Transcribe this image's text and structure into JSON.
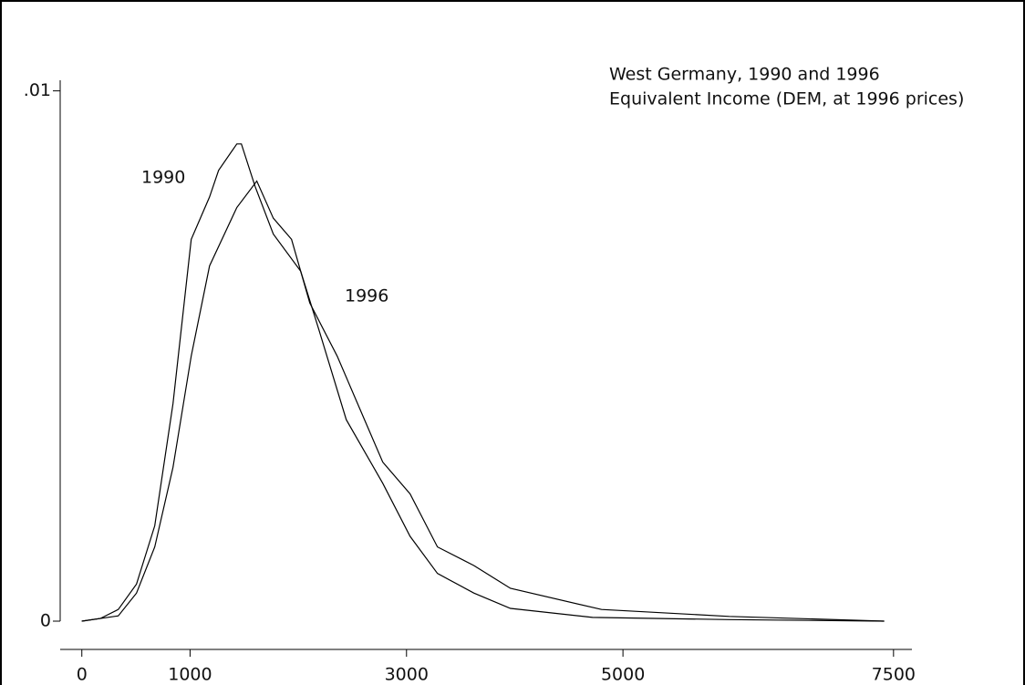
{
  "chart_data": {
    "type": "line",
    "title": "West Germany, 1990 and 1996",
    "subtitle": "Equivalent Income (DEM, at 1996 prices)",
    "series": [
      {
        "name": "1990",
        "color": "#000000",
        "x": [
          0,
          170,
          337,
          505,
          674,
          842,
          1011,
          1180,
          1264,
          1432,
          1474,
          1601,
          1769,
          2022,
          2190,
          2443,
          2780,
          3033,
          3286,
          3622,
          3960,
          4718,
          5981,
          7414
        ],
        "values": [
          0,
          5e-05,
          0.00022,
          0.0007,
          0.0018,
          0.0041,
          0.0072,
          0.008,
          0.0085,
          0.009,
          0.009,
          0.0082,
          0.0073,
          0.0066,
          0.0055,
          0.0038,
          0.0026,
          0.0016,
          0.0009,
          0.00053,
          0.00024,
          7e-05,
          3e-05,
          0
        ]
      },
      {
        "name": "1996",
        "color": "#000000",
        "x": [
          0,
          337,
          505,
          674,
          842,
          1011,
          1180,
          1432,
          1617,
          1769,
          1938,
          2106,
          2359,
          2612,
          2780,
          3033,
          3286,
          3622,
          3960,
          4802,
          5981,
          7414
        ],
        "values": [
          0,
          0.0001,
          0.00053,
          0.0014,
          0.0029,
          0.005,
          0.0067,
          0.0078,
          0.0083,
          0.0076,
          0.0072,
          0.006,
          0.005,
          0.0038,
          0.003,
          0.0024,
          0.0014,
          0.00105,
          0.00062,
          0.00022,
          9e-05,
          0
        ]
      }
    ],
    "xlim": [
      -200,
      7670
    ],
    "xticks": [
      0,
      1000,
      3000,
      5000,
      7500
    ],
    "ylim": [
      0,
      0.0102
    ],
    "yticks": [
      0,
      {
        "value": 0.01,
        "label": ".01"
      }
    ]
  }
}
